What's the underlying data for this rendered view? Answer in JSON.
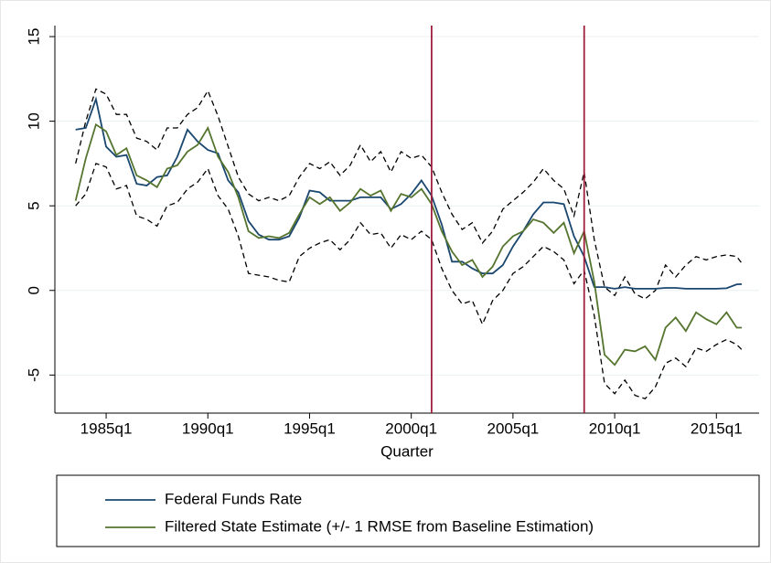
{
  "chart_data": {
    "type": "line",
    "xlabel": "Quarter",
    "x": [
      1983.5,
      1984,
      1984.5,
      1985,
      1985.5,
      1986,
      1986.5,
      1987,
      1987.5,
      1988,
      1988.5,
      1989,
      1989.5,
      1990,
      1990.5,
      1991,
      1991.5,
      1992,
      1992.5,
      1993,
      1993.5,
      1994,
      1994.5,
      1995,
      1995.5,
      1996,
      1996.5,
      1997,
      1997.5,
      1998,
      1998.5,
      1999,
      1999.5,
      2000,
      2000.5,
      2001,
      2001.5,
      2002,
      2002.5,
      2003,
      2003.5,
      2004,
      2004.5,
      2005,
      2005.5,
      2006,
      2006.5,
      2007,
      2007.5,
      2008,
      2008.5,
      2009,
      2009.5,
      2010,
      2010.5,
      2011,
      2011.5,
      2012,
      2012.5,
      2013,
      2013.5,
      2014,
      2014.5,
      2015,
      2015.5,
      2016,
      2016.25
    ],
    "series": [
      {
        "color": "#000000",
        "dash": true,
        "values": [
          7.5,
          10.0,
          11.9,
          11.6,
          10.4,
          10.4,
          9.0,
          8.8,
          8.3,
          9.6,
          9.6,
          10.4,
          10.8,
          11.8,
          10.3,
          8.5,
          6.7,
          5.7,
          5.3,
          5.5,
          5.3,
          5.6,
          6.7,
          7.5,
          7.2,
          7.6,
          6.8,
          7.4,
          8.6,
          7.6,
          8.2,
          7.0,
          8.2,
          7.8,
          8.0,
          7.3,
          5.8,
          4.5,
          3.6,
          4.0,
          2.8,
          3.5,
          4.8,
          5.3,
          5.8,
          6.4,
          7.2,
          6.5,
          6.0,
          4.4,
          7.0,
          3.0,
          0.2,
          -0.3,
          0.8,
          -0.2,
          -0.5,
          0.0,
          1.5,
          0.8,
          1.5,
          2.0,
          1.8,
          2.0,
          2.1,
          2.0,
          1.6
        ]
      },
      {
        "color": "#000000",
        "dash": true,
        "values": [
          5.0,
          5.7,
          7.5,
          7.3,
          6.0,
          6.2,
          4.4,
          4.2,
          3.8,
          5.0,
          5.2,
          6.0,
          6.4,
          7.2,
          5.6,
          4.8,
          3.2,
          1.0,
          0.9,
          0.8,
          0.6,
          0.5,
          2.0,
          2.5,
          2.8,
          3.0,
          2.4,
          3.0,
          4.0,
          3.3,
          3.4,
          2.5,
          3.3,
          3.0,
          3.5,
          3.0,
          1.3,
          0.0,
          -0.8,
          -0.6,
          -2.0,
          -0.6,
          0.0,
          1.0,
          1.4,
          2.0,
          2.6,
          2.3,
          1.8,
          0.4,
          1.2,
          -1.5,
          -5.5,
          -6.1,
          -5.3,
          -6.2,
          -6.4,
          -5.7,
          -4.3,
          -4.0,
          -4.5,
          -3.4,
          -3.6,
          -3.2,
          -2.9,
          -3.2,
          -3.5
        ]
      },
      {
        "name": "Federal Funds Rate",
        "color": "#1a476f",
        "values": [
          9.5,
          9.6,
          11.3,
          8.5,
          7.9,
          8.0,
          6.3,
          6.2,
          6.7,
          6.8,
          7.9,
          9.5,
          8.8,
          8.3,
          8.1,
          6.5,
          5.8,
          4.1,
          3.3,
          3.0,
          3.0,
          3.2,
          4.3,
          5.9,
          5.8,
          5.3,
          5.3,
          5.3,
          5.5,
          5.5,
          5.5,
          4.8,
          5.1,
          5.7,
          6.5,
          5.6,
          3.9,
          1.7,
          1.7,
          1.3,
          1.0,
          1.0,
          1.5,
          2.6,
          3.5,
          4.5,
          5.2,
          5.2,
          5.1,
          3.2,
          2.0,
          0.2,
          0.2,
          0.1,
          0.2,
          0.1,
          0.1,
          0.1,
          0.15,
          0.15,
          0.1,
          0.1,
          0.1,
          0.1,
          0.13,
          0.36,
          0.37
        ]
      },
      {
        "name": "Filtered State Estimate (+/- 1 RMSE from Baseline Estimation)",
        "color": "#55752f",
        "values": [
          5.3,
          7.8,
          9.8,
          9.4,
          8.0,
          8.4,
          6.8,
          6.5,
          6.1,
          7.2,
          7.4,
          8.2,
          8.6,
          9.6,
          7.9,
          7.0,
          5.5,
          3.5,
          3.1,
          3.2,
          3.1,
          3.4,
          4.5,
          5.5,
          5.1,
          5.5,
          4.7,
          5.2,
          6.0,
          5.6,
          5.9,
          4.7,
          5.7,
          5.5,
          6.0,
          5.1,
          3.5,
          2.3,
          1.5,
          1.8,
          0.8,
          1.4,
          2.6,
          3.2,
          3.5,
          4.2,
          4.0,
          3.4,
          4.0,
          2.2,
          3.5,
          0.5,
          -3.8,
          -4.4,
          -3.5,
          -3.6,
          -3.3,
          -4.1,
          -2.2,
          -1.6,
          -2.4,
          -1.3,
          -1.7,
          -2.0,
          -1.3,
          -2.2,
          -2.2
        ]
      }
    ],
    "vlines": [
      2001,
      2008.5
    ],
    "vline_color": "#a0203c",
    "xlim": [
      1982.48,
      2017.1
    ],
    "xticks": [
      {
        "value": 1985,
        "label": "1985q1"
      },
      {
        "value": 1990,
        "label": "1990q1"
      },
      {
        "value": 1995,
        "label": "1995q1"
      },
      {
        "value": 2000,
        "label": "2000q1"
      },
      {
        "value": 2005,
        "label": "2005q1"
      },
      {
        "value": 2010,
        "label": "2010q1"
      },
      {
        "value": 2015,
        "label": "2015q1"
      }
    ],
    "ylim": [
      -7.25,
      15.65
    ],
    "yticks": [
      -5,
      0,
      5,
      10,
      15
    ],
    "grid": true
  }
}
